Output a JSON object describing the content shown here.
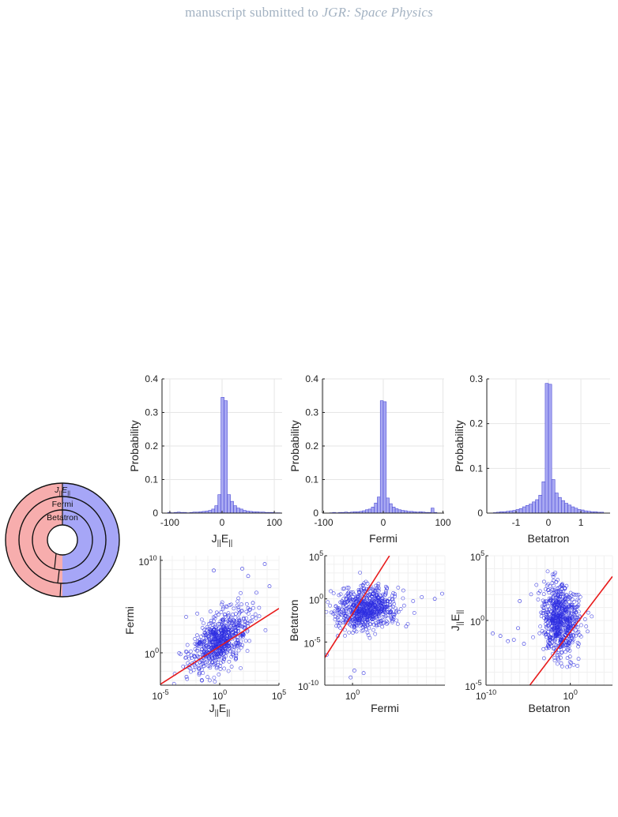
{
  "header": {
    "prefix": "manuscript submitted to ",
    "journal": "JGR: Space Physics"
  },
  "ring_chart": {
    "labels": [
      "J||E||",
      "Fermi",
      "Betatron"
    ],
    "colors": {
      "left": "#f7adad",
      "right": "#a6a6f7"
    }
  },
  "colors": {
    "bar": "#a9a9f2",
    "bar_edge": "#4b4bd6",
    "point": "#2d2de0",
    "line": "#e81b1b",
    "grid": "#e6e6e6"
  },
  "chart_data": [
    {
      "type": "bar",
      "xlabel": "J||E||",
      "ylabel": "Probability",
      "xlim": [
        -115,
        115
      ],
      "ylim": [
        0,
        0.4
      ],
      "xticks": [
        -100,
        0,
        100
      ],
      "yticks": [
        0,
        0.1,
        0.2,
        0.3,
        0.4
      ],
      "bin_edges": [
        -104,
        -98,
        -92,
        -86,
        -80,
        -74,
        -68,
        -62,
        -56,
        -50,
        -44,
        -38,
        -32,
        -26,
        -20,
        -14,
        -8,
        -2,
        4,
        10,
        16,
        22,
        28,
        34,
        40,
        46,
        52,
        58,
        64,
        70,
        76,
        82,
        88,
        94,
        100,
        106,
        112
      ],
      "values": [
        0.002,
        0.001,
        0.002,
        0.003,
        0.002,
        0.002,
        0.001,
        0.002,
        0.003,
        0.003,
        0.004,
        0.005,
        0.006,
        0.008,
        0.012,
        0.022,
        0.055,
        0.345,
        0.335,
        0.055,
        0.035,
        0.022,
        0.015,
        0.012,
        0.008,
        0.006,
        0.005,
        0.004,
        0.004,
        0.003,
        0.003,
        0.002,
        0.002,
        0.002,
        0.001,
        0.001
      ]
    },
    {
      "type": "bar",
      "xlabel": "Fermi",
      "ylabel": "Probability",
      "xlim": [
        -102,
        102
      ],
      "ylim": [
        0,
        0.4
      ],
      "xticks": [
        -100,
        0,
        100
      ],
      "yticks": [
        0,
        0.1,
        0.2,
        0.3,
        0.4
      ],
      "bin_edges": [
        -90,
        -85,
        -80,
        -75,
        -70,
        -65,
        -60,
        -55,
        -50,
        -45,
        -40,
        -35,
        -30,
        -25,
        -20,
        -15,
        -10,
        -5,
        0,
        5,
        10,
        15,
        20,
        25,
        30,
        35,
        40,
        45,
        50,
        55,
        60,
        65,
        70,
        75,
        80,
        85,
        90
      ],
      "values": [
        0.001,
        0.002,
        0.001,
        0.002,
        0.002,
        0.003,
        0.002,
        0.003,
        0.004,
        0.004,
        0.005,
        0.007,
        0.01,
        0.012,
        0.018,
        0.03,
        0.048,
        0.335,
        0.332,
        0.045,
        0.028,
        0.018,
        0.013,
        0.01,
        0.008,
        0.007,
        0.005,
        0.005,
        0.004,
        0.003,
        0.004,
        0.003,
        0.002,
        0.002,
        0.015,
        0.002
      ]
    },
    {
      "type": "bar",
      "xlabel": "Betatron",
      "ylabel": "Probability",
      "xlim": [
        -1.9,
        1.9
      ],
      "ylim": [
        0,
        0.3
      ],
      "xticks": [
        -1,
        0,
        1
      ],
      "yticks": [
        0,
        0.1,
        0.2,
        0.3
      ],
      "bin_edges": [
        -1.7,
        -1.6,
        -1.5,
        -1.4,
        -1.3,
        -1.2,
        -1.1,
        -1.0,
        -0.9,
        -0.8,
        -0.7,
        -0.6,
        -0.5,
        -0.4,
        -0.3,
        -0.2,
        -0.1,
        0,
        0.1,
        0.2,
        0.3,
        0.4,
        0.5,
        0.6,
        0.7,
        0.8,
        0.9,
        1.0,
        1.1,
        1.2,
        1.3,
        1.4,
        1.5,
        1.6,
        1.7
      ],
      "values": [
        0.001,
        0.002,
        0.003,
        0.003,
        0.004,
        0.005,
        0.006,
        0.008,
        0.01,
        0.014,
        0.017,
        0.02,
        0.025,
        0.03,
        0.04,
        0.07,
        0.29,
        0.288,
        0.075,
        0.045,
        0.035,
        0.028,
        0.022,
        0.018,
        0.014,
        0.011,
        0.008,
        0.007,
        0.005,
        0.004,
        0.003,
        0.003,
        0.002,
        0.002
      ]
    },
    {
      "type": "scatter",
      "xlabel": "J||E||",
      "ylabel": "Fermi",
      "xscale": "log",
      "yscale": "log",
      "xlim_exp": [
        -5,
        5
      ],
      "ylim_exp": [
        -3.5,
        10.5
      ],
      "xticks": [
        "-5",
        "0",
        "5"
      ],
      "yticks": [
        "0",
        "10"
      ],
      "cloud": {
        "count": 650,
        "cx": 0,
        "cy": 1.2,
        "sx": 1.2,
        "sy": 1.7,
        "rho": 0.5
      },
      "extra_points": [
        [
          2.4,
          8.3
        ],
        [
          3.1,
          6.5
        ],
        [
          3.8,
          9.6
        ],
        [
          1.9,
          9.1
        ],
        [
          -0.5,
          8.9
        ],
        [
          4.2,
          7.2
        ],
        [
          -2.8,
          -2.6
        ],
        [
          -1.5,
          -3.0
        ],
        [
          2.8,
          5.4
        ]
      ],
      "fit_line": [
        [
          -5,
          -3.4
        ],
        [
          5,
          4.8
        ]
      ]
    },
    {
      "type": "scatter",
      "xlabel": "Fermi",
      "ylabel": "Betatron",
      "xscale": "log",
      "yscale": "log",
      "xlim_exp": [
        -3,
        10
      ],
      "ylim_exp": [
        -10,
        5
      ],
      "xticks": [
        "0"
      ],
      "yticks": [
        "-10",
        "-5",
        "0",
        "5"
      ],
      "cloud": {
        "count": 650,
        "cx": 1.4,
        "cy": -1.1,
        "sx": 1.6,
        "sy": 1.25,
        "rho": 0.2
      },
      "extra_points": [
        [
          -2.8,
          -6.5
        ],
        [
          0.2,
          -8.3
        ],
        [
          -0.2,
          -9.1
        ],
        [
          1.2,
          -8.6
        ],
        [
          8.9,
          0.0
        ],
        [
          7.5,
          0.2
        ],
        [
          9.7,
          0.6
        ],
        [
          5.8,
          -3.2
        ],
        [
          -1.6,
          -4.3
        ]
      ],
      "fit_line": [
        [
          -3,
          -6.8
        ],
        [
          4.0,
          5
        ]
      ]
    },
    {
      "type": "scatter",
      "xlabel": "Betatron",
      "ylabel": "J||E||",
      "xscale": "log",
      "yscale": "log",
      "xlim_exp": [
        -10,
        5
      ],
      "ylim_exp": [
        -5,
        5
      ],
      "xticks": [
        "-10",
        "0"
      ],
      "yticks": [
        "-5",
        "0",
        "5"
      ],
      "cloud": {
        "count": 650,
        "cx": -1.2,
        "cy": 0.0,
        "sx": 1.1,
        "sy": 1.35,
        "rho": -0.1
      },
      "extra_points": [
        [
          -6.0,
          1.5
        ],
        [
          -8.3,
          -1.2
        ],
        [
          -7.4,
          -1.6
        ],
        [
          -6.7,
          -1.5
        ],
        [
          -5.5,
          -1.8
        ],
        [
          -9.2,
          -1.0
        ],
        [
          -6.2,
          -0.6
        ]
      ],
      "fit_line": [
        [
          -4.8,
          -5
        ],
        [
          5,
          3.4
        ]
      ]
    }
  ]
}
